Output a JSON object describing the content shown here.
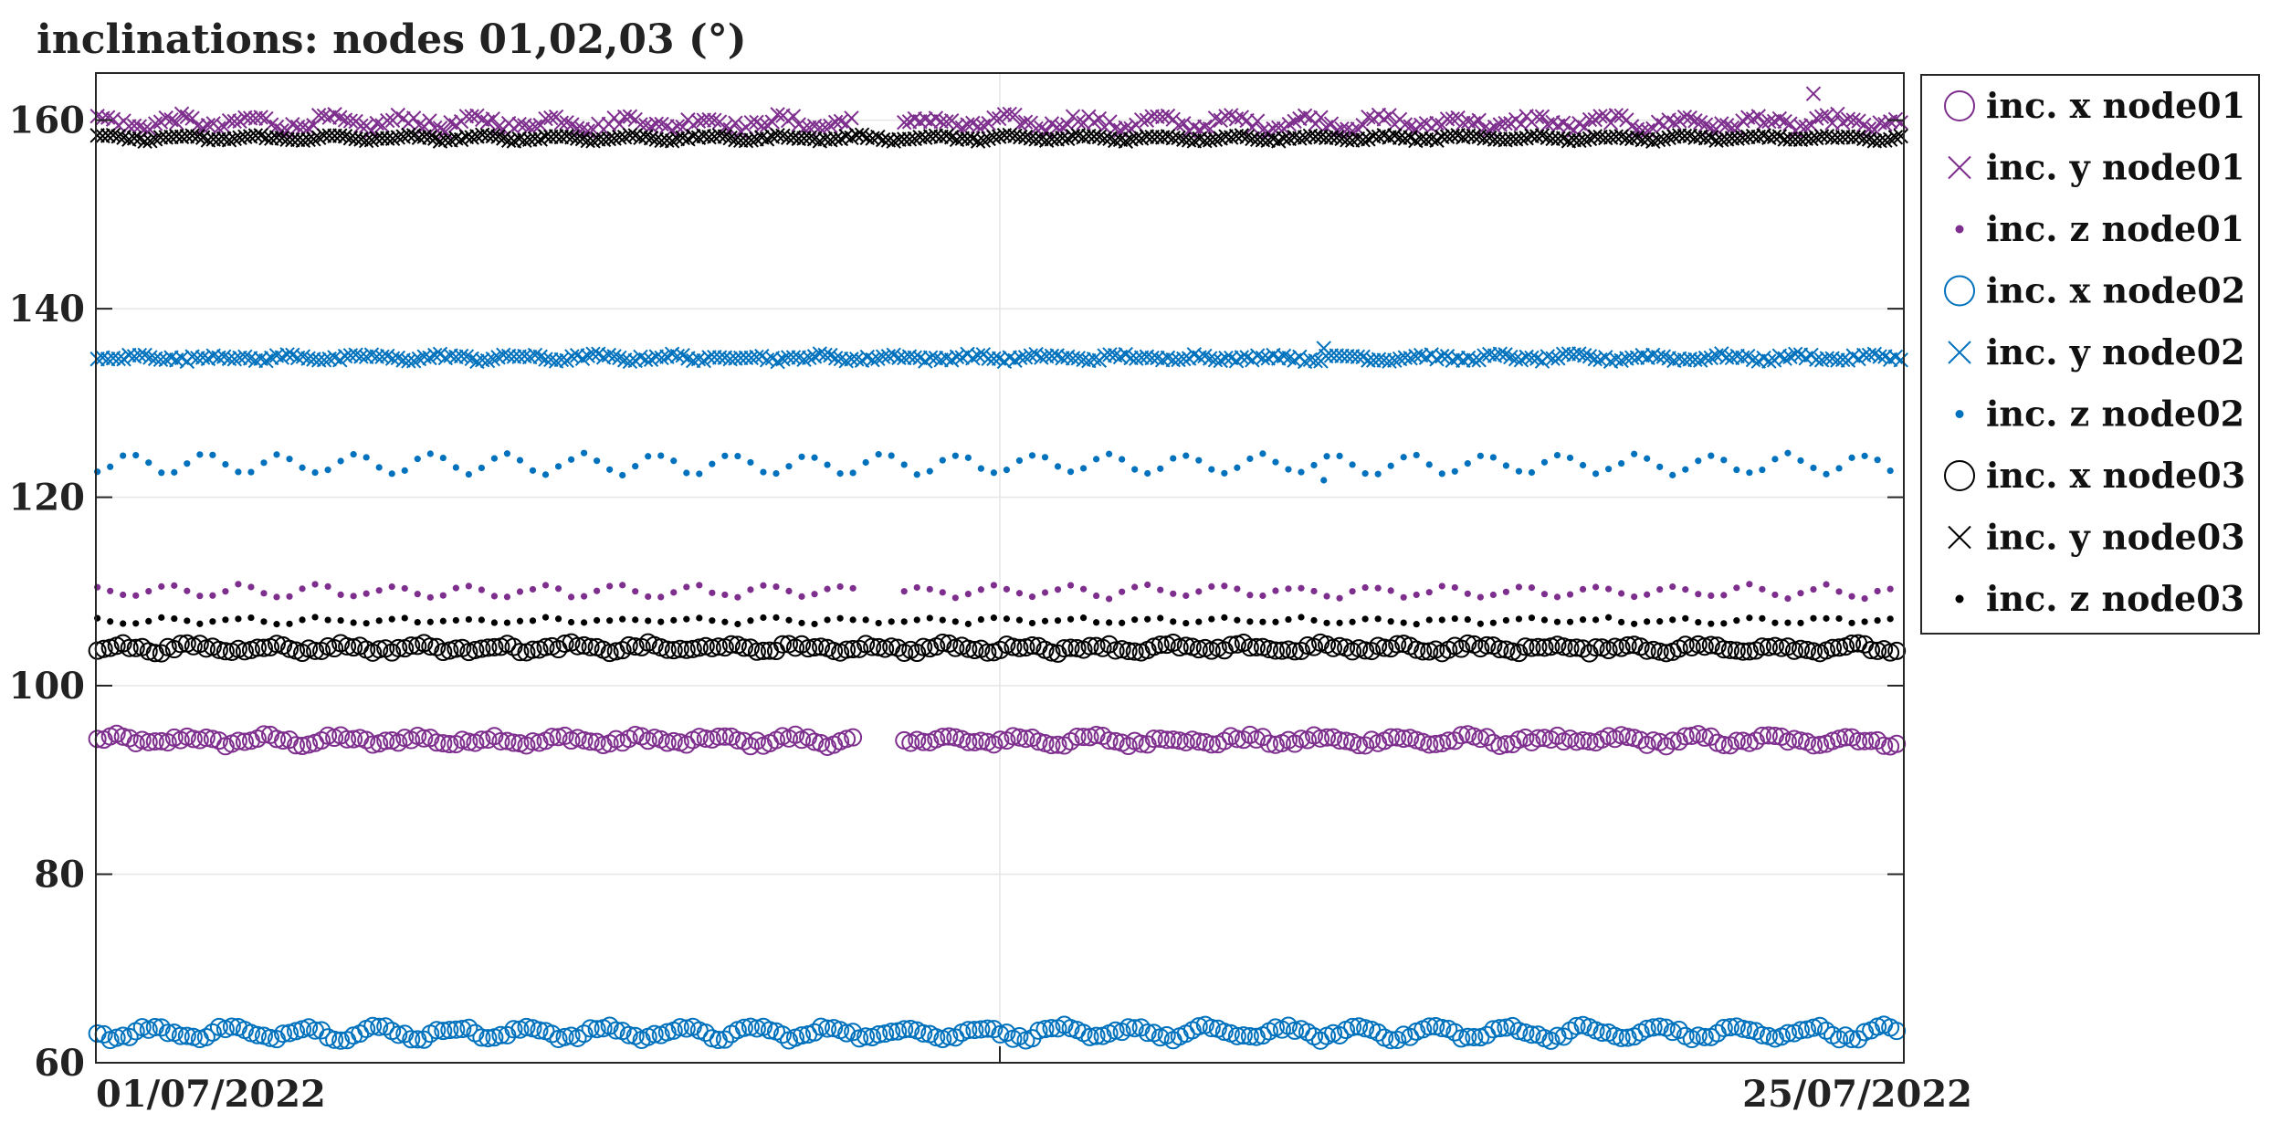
{
  "chart_data": {
    "type": "scatter",
    "title": "inclinations: nodes 01,02,03 (°)",
    "xlabel": "",
    "ylabel": "",
    "x_range": [
      "01/07/2022",
      "25/07/2022"
    ],
    "x_tick_labels": [
      "01/07/2022",
      "25/07/2022"
    ],
    "ylim": [
      60,
      165
    ],
    "y_ticks": [
      60,
      80,
      100,
      120,
      140,
      160
    ],
    "grid": true,
    "legend_position": "outside-right",
    "series": [
      {
        "name": "inc. x node01",
        "marker": "circle",
        "color": "#7e2f8e",
        "mean": 94.2,
        "amp": 0.35,
        "period_days": 1,
        "noise": 0.35,
        "gaps": [
          [
            10.1,
            10.7
          ]
        ]
      },
      {
        "name": "inc. y node01",
        "marker": "x",
        "color": "#7e2f8e",
        "mean": 159.7,
        "amp": 0.5,
        "period_days": 1,
        "noise": 0.5,
        "gaps": [
          [
            10.1,
            10.7
          ]
        ],
        "outliers": [
          [
            22.8,
            162.8
          ]
        ]
      },
      {
        "name": "inc. z node01",
        "marker": "dot",
        "color": "#7e2f8e",
        "mean": 110.0,
        "amp": 0.6,
        "period_days": 1,
        "noise": 0.2,
        "gaps": [
          [
            10.1,
            10.7
          ]
        ]
      },
      {
        "name": "inc. x node02",
        "marker": "circle",
        "color": "#0072bd",
        "mean": 63.2,
        "amp": 0.6,
        "period_days": 1,
        "noise": 0.3,
        "gaps": []
      },
      {
        "name": "inc. y node02",
        "marker": "x",
        "color": "#0072bd",
        "mean": 134.8,
        "amp": 0.2,
        "period_days": 1,
        "noise": 0.25,
        "gaps": [],
        "outliers": [
          [
            16.3,
            135.8
          ]
        ]
      },
      {
        "name": "inc. z node02",
        "marker": "dot",
        "color": "#0072bd",
        "mean": 123.5,
        "amp": 1.0,
        "period_days": 1,
        "noise": 0.2,
        "gaps": [],
        "outliers": [
          [
            16.3,
            121.8
          ]
        ]
      },
      {
        "name": "inc. x node03",
        "marker": "circle",
        "color": "#000000",
        "mean": 104.0,
        "amp": 0.3,
        "period_days": 1,
        "noise": 0.3,
        "gaps": []
      },
      {
        "name": "inc. y node03",
        "marker": "x",
        "color": "#000000",
        "mean": 158.1,
        "amp": 0.2,
        "period_days": 1,
        "noise": 0.15,
        "gaps": []
      },
      {
        "name": "inc. z node03",
        "marker": "dot",
        "color": "#000000",
        "mean": 106.9,
        "amp": 0.25,
        "period_days": 1,
        "noise": 0.15,
        "gaps": []
      }
    ]
  }
}
